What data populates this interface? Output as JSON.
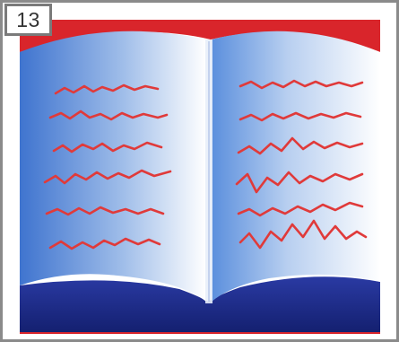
{
  "badge": {
    "number": "13"
  },
  "illustration": {
    "subject": "open-book-icon",
    "colors": {
      "border": "#808080",
      "background_red": "#d9252b",
      "cover_navy": "#1c2a8a",
      "page_blue": "#4e84d6",
      "page_white": "#ffffff",
      "scribble_red": "#e03a3a"
    }
  }
}
